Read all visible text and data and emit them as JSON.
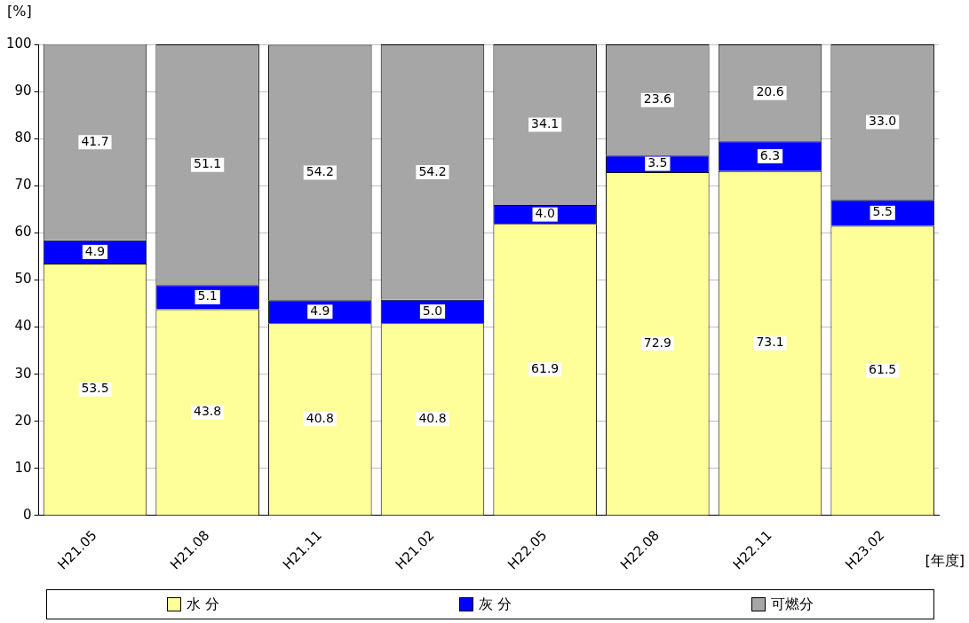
{
  "chart_data": {
    "type": "bar",
    "stacked": true,
    "xlabel": "[年度]",
    "ylabel": "[%]",
    "categories": [
      "H21.05",
      "H21.08",
      "H21.11",
      "H21.02",
      "H22.05",
      "H22.08",
      "H22.11",
      "H23.02"
    ],
    "series": [
      {
        "name": "水 分",
        "color": "#ffff99",
        "values": [
          53.5,
          43.8,
          40.8,
          40.8,
          61.9,
          72.9,
          73.1,
          61.5
        ],
        "value_labels": [
          "53.5",
          "43.8",
          "40.8",
          "40.8",
          "61.9",
          "72.9",
          "73.1",
          "61.5"
        ]
      },
      {
        "name": "灰 分",
        "color": "#0000ff",
        "values": [
          4.9,
          5.1,
          4.9,
          5.0,
          4.0,
          3.5,
          6.3,
          5.5
        ],
        "value_labels": [
          "4.9",
          "5.1",
          "4.9",
          "5.0",
          "4.0",
          "3.5",
          "6.3",
          "5.5"
        ]
      },
      {
        "name": "可燃分",
        "color": "#a6a6a6",
        "values": [
          41.7,
          51.1,
          54.2,
          54.2,
          34.1,
          23.6,
          20.6,
          33.0
        ],
        "value_labels": [
          "41.7",
          "51.1",
          "54.2",
          "54.2",
          "34.1",
          "23.6",
          "20.6",
          "33.0"
        ]
      }
    ],
    "ylim": [
      0,
      100
    ],
    "yticks": [
      0,
      10,
      20,
      30,
      40,
      50,
      60,
      70,
      80,
      90,
      100
    ],
    "grid": "y",
    "legend": "bottom"
  }
}
